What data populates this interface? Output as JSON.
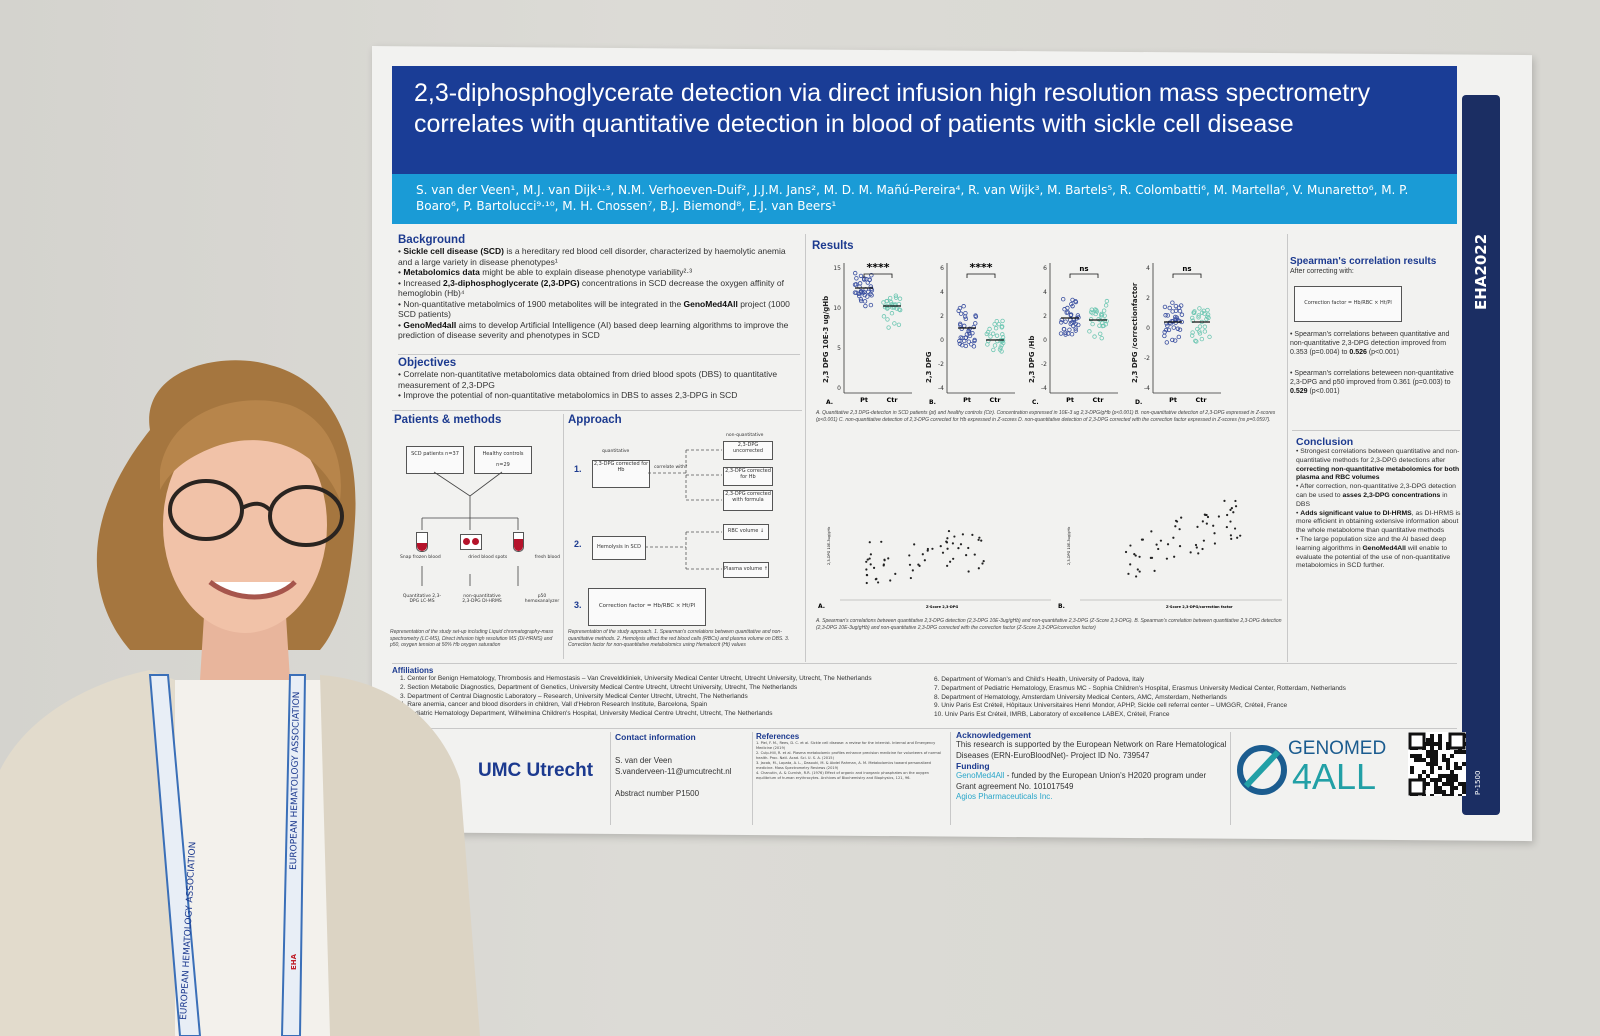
{
  "poster": {
    "title": "2,3-diphosphoglycerate detection via direct infusion high resolution mass spectrometry correlates with quantitative detection in blood of patients with sickle cell disease",
    "authors": "S. van der Veen¹, M.J. van Dijk¹·³, N.M. Verhoeven-Duif², J.J.M. Jans², M. D. M. Mañú-Pereira⁴, R. van Wijk³, M. Bartels⁵, R. Colombatti⁶, M. Martella⁶, V. Munaretto⁶, M. P. Boaro⁶, P. Bartolucci⁹·¹⁰, M. H. Cnossen⁷, B.J. Biemond⁸, E.J. van Beers¹",
    "side_label": "EHA2022",
    "side_sub": "P-1500",
    "background": {
      "heading": "Background",
      "items": [
        {
          "bold": "Sickle cell disease (SCD)",
          "text": " is a hereditary red blood cell disorder, characterized by haemolytic anemia and a large variety in disease phenotypes¹"
        },
        {
          "bold": "Metabolomics data",
          "text": " might be able to explain disease phenotype variability²·³"
        },
        {
          "pre": "Increased ",
          "bold": "2,3-diphosphoglycerate (2,3-DPG)",
          "text": " concentrations in SCD decrease the oxygen affinity of hemoglobin (Hb)⁴"
        },
        {
          "pre": "Non-quantitative metabolmics of 1900 metabolites will be integrated in the ",
          "bold": "GenoMed4All",
          "text": " project (1000 SCD patients)"
        },
        {
          "bold": "GenoMed4all",
          "text": " aims to develop Artificial Intelligence (AI) based deep learning algorithms to improve the prediction of disease severity and phenotypes in SCD"
        }
      ]
    },
    "objectives": {
      "heading": "Objectives",
      "items": [
        "Correlate non-quantitative metabolomics data obtained from dried blood spots (DBS) to quantitative measurement of 2,3-DPG",
        "Improve the potential of non-quantitative metabolomics in DBS to asses 2,3-DPG in SCD"
      ]
    },
    "methods": {
      "heading": "Patients & methods",
      "groups": [
        "SCD patients n=37",
        "Healthy controls n=29"
      ],
      "samples": [
        "Snap frozen blood",
        "dried blood spots",
        "fresh blood"
      ],
      "assays": [
        "Quantitative 2,3-DPG LC-MS",
        "non-quantitative 2,3-DPG DI-HRMS",
        "p50 hemoxanalyzer"
      ],
      "caption": "Representation of the study set-up including Liquid chromatography-mass spectrometry (LC-MS), Direct infusion high resolution MS (DI-HRMS) and p50, oxygen tension at 50% Hb oxygen saturation"
    },
    "approach": {
      "heading": "Approach",
      "steps": [
        "1.",
        "2.",
        "3."
      ],
      "quantitative_label": "quantitative",
      "nonquant_label": "non-quantitative",
      "correlate": "correlate with?",
      "step1_box": "2,3-DPG corrected for Hb",
      "step1_targets": [
        "2,3-DPG uncorrected",
        "2,3-DPG corrected for Hb",
        "2,3-DPG corrected with formula"
      ],
      "step2_box": "Hemolysis in SCD",
      "step2_targets": [
        "RBC volume ↓",
        "Plasma volume ↑"
      ],
      "step3_box": "Correction factor = Hb/RBC × Ht/Pl",
      "caption": "Representation of the study approach. 1. Spearman's correlations between quantitative and non-quantitative methods. 2. Hemolysis affect the red blood cells (RBCs) and plasma volume on DBS. 3. Correction factor for non-quantitative metabolomics using Hematocrit (Ht) values"
    },
    "results": {
      "heading": "Results",
      "panels": [
        {
          "letter": "A.",
          "ylabel": "2,3 DPG 10E-3 ug/gHb",
          "sig": "****",
          "yticks": [
            "15",
            "10",
            "5",
            "0"
          ]
        },
        {
          "letter": "B.",
          "ylabel": "2,3 DPG",
          "sig": "****",
          "yticks": [
            "6",
            "4",
            "2",
            "0",
            "-2",
            "-4"
          ]
        },
        {
          "letter": "C.",
          "ylabel": "2,3 DPG /Hb",
          "sig": "ns",
          "yticks": [
            "6",
            "4",
            "2",
            "0",
            "-2",
            "-4"
          ]
        },
        {
          "letter": "D.",
          "ylabel": "2,3 DPG /correctionfactor",
          "sig": "ns",
          "yticks": [
            "4",
            "2",
            "0",
            "-2",
            "-4"
          ]
        }
      ],
      "groups": [
        "Pt",
        "Ctr"
      ],
      "caption1": "A. Quantitative 2,3 DPG-detection in SCD patients (pt) and healthy controls (Ctr). Concentration expressed in 10E-3 ug 2,3-DPG/gHb (p<0.001) B. non-quantitative detection of 2,3-DPG expressed in Z-scores (p<0.001) C. non-quantitative detection of 2,3-DPG corrected for Hb expressed in Z-scores D. non-quantitative detection of 2,3-DPG corrected with the correction factor expressed in Z-scores (ns p=0.0597).",
      "scatter": [
        {
          "letter": "A.",
          "xlabel": "Z-Score 2,3-DPG",
          "ylabel": "2,3-DPG 10E-3ug/gHb"
        },
        {
          "letter": "B.",
          "xlabel": "Z-Score 2,3-DPG/correction factor",
          "ylabel": "2,3-DPG 10E-3ug/gHb"
        }
      ],
      "caption2": "A. Spearman's correlations between quantitative 2,3-DPG detection (2,3-DPG 10E-3ug/gHb) and non-quantitative 2,3-DPG (Z-Score 2,3-DPG). B. Spearman's correlation between quantitative 2,3-DPG detection (2,3-DPG 10E-3ug/gHb) and non-quantitative 2,3-DPG corrected with the correction factor (Z-Score 2,3-DPG/correction factor)"
    },
    "spearman": {
      "heading": "Spearman's correlation results",
      "intro": "After correcting with:",
      "formula": "Correction factor = Hb/RBC × Ht/Pl",
      "items": [
        {
          "text": "Spearman's correlations between quantitative and non-quantitative 2,3-DPG detection improved from 0.353 (p=0.004) to ",
          "bold": "0.526",
          "post": " (p<0.001)"
        },
        {
          "text": "Spearman's correlations beteween non-quantitative 2,3-DPG and p50 improved from 0.361 (p=0.003) to ",
          "bold": "0.529",
          "post": " (p<0.001)"
        }
      ]
    },
    "conclusion": {
      "heading": "Conclusion",
      "items": [
        {
          "pre": "Strongest correlations between quantitative and non-quantitative methods for 2,3-DPG detections after ",
          "bold": "correcting non-quantitative metabolomics for both plasma and RBC volumes",
          "post": ""
        },
        {
          "pre": "After correction, non-quantitative 2,3-DPG detection can be used to ",
          "bold": "asses 2,3-DPG concentrations",
          "post": " in DBS"
        },
        {
          "pre": "",
          "bold": "Adds significant value to DI-HRMS",
          "post": ", as DI-HRMS is more efficient in obtaining extensive information about the whole metabolome than quantitative methods"
        },
        {
          "pre": "The large population size and the AI based deep learning algorithms in ",
          "bold": "GenoMed4All",
          "post": " will enable to evaluate the potential of the use of non-quantitative metabolomics in SCD further."
        }
      ]
    },
    "affiliations": {
      "heading": "Affiliations",
      "left": [
        "1. Center for Benign Hematology, Thrombosis and Hemostasis – Van Creveldkliniek, University Medical Center Utrecht, Utrecht University, Utrecht, The Netherlands",
        "2. Section Metabolic Diagnostics, Department of Genetics, University Medical Centre Utrecht, Utrecht University, Utrecht, The Netherlands",
        "3. Department of Central Diagnostic Laboratory – Research, University Medical Center Utrecht, Utrecht, The Netherlands",
        "4. Rare anemia, cancer and blood disorders in children, Vall d'Hebron Research Institute, Barcelona, Spain",
        "5. Pediatric Hematology Department, Wilhelmina Children's Hospital, University Medical Centre Utrecht, Utrecht, The Netherlands"
      ],
      "right": [
        "6. Department of Woman's and Child's Health, University of Padova, Italy",
        "7. Department of Pediatric Hematology, Erasmus MC - Sophia Children's Hospital, Erasmus University Medical Center, Rotterdam, Netherlands",
        "8. Department of Hematology, Amsterdam University Medical Centers, AMC, Amsterdam, Netherlands",
        "9. Univ Paris Est Créteil, Hôpitaux Universitaires Henri Mondor, APHP, Sickle cell referral center – UMGGR, Créteil, France",
        "10. Univ Paris Est Créteil, IMRB, Laboratory of excellence LABEX, Créteil, France"
      ]
    },
    "footer": {
      "umc_logo": "UMC Utrecht",
      "contact_heading": "Contact information",
      "contact_name": "S. van der Veen",
      "contact_email": "S.vanderveen-11@umcutrecht.nl",
      "abstract": "Abstract number P1500",
      "references_heading": "References",
      "references": [
        "1. Piel, F. M., Rees, D. C. et al. Sickle cell disease: a review for the internist. Internal and Emergency Medicine (2019)",
        "2. Culp-Hill, R. et al. Plasma metabolomic profiles enhance precision medicine for volunteers of normal health. Proc. Natl. Acad. Sci. U. S. A. (2015)",
        "3. Jacob, M., Lopata, A. L., Dasouki, M. & Abdel Rahman, A. M. Metabolomics toward personalized medicine. Mass Spectrometry Reviews (2019)",
        "4. Chanutin, A. & Curnish, R.R. (1976) Effect of organic and inorganic phosphates on the oxygen equilibrium of human erythrocytes. Archives of Biochemistry and Biophysics, 121, 96."
      ],
      "ack_heading": "Acknowledgement",
      "ack_text": "This research is supported by the European Network on Rare Hematological Diseases (ERN-EuroBloodNet)- Project ID No. 739547",
      "funding_heading": "Funding",
      "funding_link": "GenoMed4All",
      "funding_text": " - funded by the European Union's H2020 program under Grant agreement No. 101017549",
      "funding_sponsor": "Agios Pharmaceuticals Inc.",
      "genomed_logo_top": "GENOMED",
      "genomed_logo_bottom": "4ALL"
    }
  },
  "lanyard": {
    "text": "EUROPEAN HEMATOLOGY ASSOCIATION",
    "brand": "EHA"
  },
  "colors": {
    "title_blue": "#1a3d96",
    "author_blue": "#1a9bd6",
    "heading_blue": "#1c3a8f",
    "patient_dots": "#3a4fa0",
    "control_dots": "#6fc7b3",
    "genomed_teal": "#22a0a6",
    "blood_red": "#b5132b"
  }
}
